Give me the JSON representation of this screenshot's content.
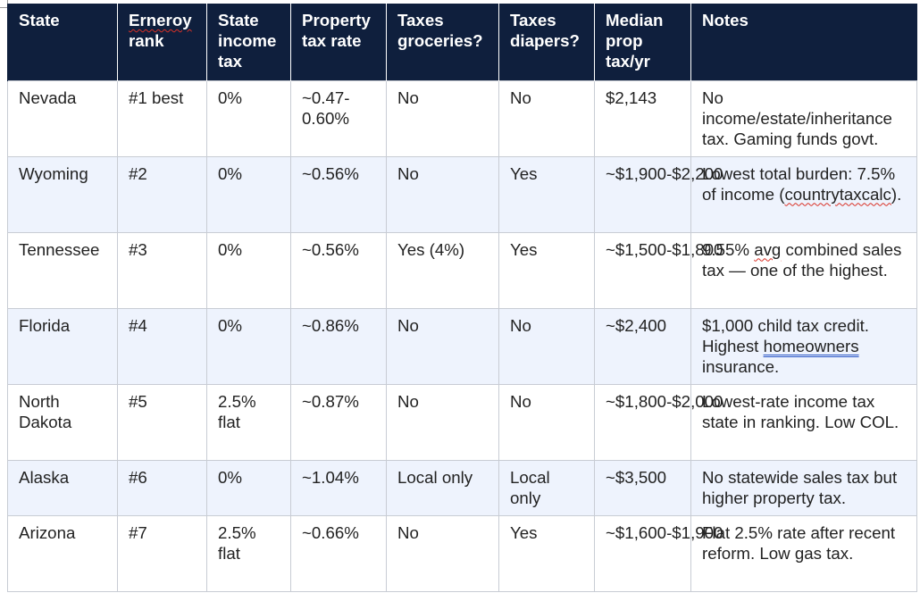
{
  "table": {
    "headers": {
      "state": "State",
      "rank_part1": "Erneroy",
      "rank_part2": " rank",
      "income_tax": "State income tax",
      "property_tax_rate": "Property tax rate",
      "taxes_groceries": "Taxes groceries?",
      "taxes_diapers": "Taxes diapers?",
      "median_prop_tax": "Median prop tax/yr",
      "notes": "Notes"
    },
    "rows": [
      {
        "state": "Nevada",
        "rank": "#1 best",
        "income_tax": "0%",
        "property_tax_rate": "~0.47-0.60%",
        "groceries": "No",
        "diapers": "No",
        "median_prop_tax": "$2,143",
        "notes": "No income/estate/inheritance tax. Gaming funds govt."
      },
      {
        "state": "Wyoming",
        "rank": "#2",
        "income_tax": "0%",
        "property_tax_rate": "~0.56%",
        "groceries": "No",
        "diapers": "Yes",
        "median_prop_tax": "~$1,900-$2,200",
        "notes_part1": "Lowest total burden: 7.5% of income (",
        "notes_part2": "countrytaxcalc",
        "notes_part3": ")."
      },
      {
        "state": "Tennessee",
        "rank": "#3",
        "income_tax": "0%",
        "property_tax_rate": "~0.56%",
        "groceries": "Yes (4%)",
        "diapers": "Yes",
        "median_prop_tax": "~$1,500-$1,800",
        "notes_part1": "9.55% ",
        "notes_part2": "avg",
        "notes_part3": " combined sales tax — one of the highest."
      },
      {
        "state": "Florida",
        "rank": "#4",
        "income_tax": "0%",
        "property_tax_rate": "~0.86%",
        "groceries": "No",
        "diapers": "No",
        "median_prop_tax": "~$2,400",
        "notes_part1": "$1,000 child tax credit. Highest ",
        "notes_part2": "homeowners",
        "notes_part3": " insurance."
      },
      {
        "state": "North Dakota",
        "rank": "#5",
        "income_tax": "2.5% flat",
        "property_tax_rate": "~0.87%",
        "groceries": "No",
        "diapers": "No",
        "median_prop_tax": "~$1,800-$2,000",
        "notes": "Lowest-rate income tax state in ranking. Low COL."
      },
      {
        "state": "Alaska",
        "rank": "#6",
        "income_tax": "0%",
        "property_tax_rate": "~1.04%",
        "groceries": "Local only",
        "diapers": "Local only",
        "median_prop_tax": "~$3,500",
        "notes": "No statewide sales tax but higher property tax."
      },
      {
        "state": "Arizona",
        "rank": "#7",
        "income_tax": "2.5% flat",
        "property_tax_rate": "~0.66%",
        "groceries": "No",
        "diapers": "Yes",
        "median_prop_tax": "~$1,600-$1,900",
        "notes": "Flat 2.5% rate after recent reform. Low gas tax."
      }
    ]
  }
}
